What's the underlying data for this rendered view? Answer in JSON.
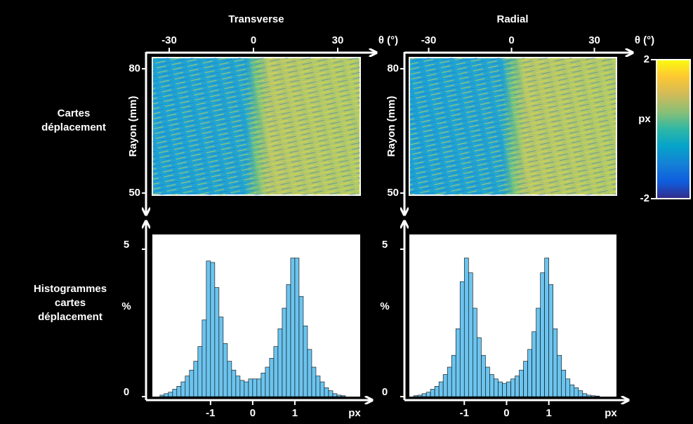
{
  "column_titles": [
    "Transverse",
    "Radial"
  ],
  "row_labels": [
    [
      "Cartes",
      "déplacement"
    ],
    [
      "Histogrammes",
      "cartes",
      "déplacement"
    ]
  ],
  "colorbar": {
    "ylim": [
      -2,
      2
    ],
    "yticks": [
      -2,
      2
    ],
    "label": "px"
  },
  "chart_data": [
    {
      "type": "heatmap",
      "xlabel": "θ (°)",
      "ylabel": "Rayon (mm)",
      "xlim": [
        -36,
        38
      ],
      "xticks": [
        -30,
        0,
        30
      ],
      "ylim": [
        49.5,
        82.7
      ],
      "yticks": [
        50,
        80
      ]
    },
    {
      "type": "heatmap",
      "xlabel": "θ (°)",
      "ylabel": "Rayon (mm)",
      "xlim": [
        -37,
        38
      ],
      "xticks": [
        -30,
        0,
        30
      ],
      "ylim": [
        49.5,
        82.7
      ],
      "yticks": [
        50,
        80
      ]
    },
    {
      "type": "histogram",
      "xlabel": "px",
      "ylabel": "%",
      "xlim": [
        -2.38,
        2.55
      ],
      "xticks": [
        -1,
        0,
        1
      ],
      "ylim": [
        0,
        5.5
      ],
      "yticks": [
        0,
        5
      ],
      "color": "#6cc4ee",
      "bins": [
        -2.2,
        -2.1,
        -2.0,
        -1.9,
        -1.8,
        -1.7,
        -1.6,
        -1.5,
        -1.4,
        -1.3,
        -1.2,
        -1.1,
        -1.0,
        -0.9,
        -0.8,
        -0.7,
        -0.6,
        -0.5,
        -0.4,
        -0.3,
        -0.2,
        -0.1,
        0.0,
        0.1,
        0.2,
        0.3,
        0.4,
        0.5,
        0.6,
        0.7,
        0.8,
        0.9,
        1.0,
        1.1,
        1.2,
        1.3,
        1.4,
        1.5,
        1.6,
        1.7,
        1.8,
        1.9,
        2.0,
        2.1,
        2.2
      ],
      "values": [
        0.05,
        0.1,
        0.15,
        0.25,
        0.35,
        0.5,
        0.7,
        0.9,
        1.2,
        1.7,
        2.6,
        4.6,
        4.55,
        3.7,
        2.7,
        1.8,
        1.2,
        0.9,
        0.7,
        0.55,
        0.5,
        0.6,
        0.6,
        0.6,
        0.8,
        1.0,
        1.3,
        1.7,
        2.3,
        3.0,
        3.8,
        4.7,
        4.7,
        3.4,
        2.4,
        1.6,
        1.0,
        0.7,
        0.5,
        0.3,
        0.2,
        0.1,
        0.05,
        0.03
      ]
    },
    {
      "type": "histogram",
      "xlabel": "px",
      "ylabel": "%",
      "xlim": [
        -2.3,
        2.6
      ],
      "xticks": [
        -1,
        0,
        1
      ],
      "ylim": [
        0,
        5.5
      ],
      "yticks": [
        0,
        5
      ],
      "color": "#6cc4ee",
      "bins": [
        -2.2,
        -2.1,
        -2.0,
        -1.9,
        -1.8,
        -1.7,
        -1.6,
        -1.5,
        -1.4,
        -1.3,
        -1.2,
        -1.1,
        -1.0,
        -0.9,
        -0.8,
        -0.7,
        -0.6,
        -0.5,
        -0.4,
        -0.3,
        -0.2,
        -0.1,
        0.0,
        0.1,
        0.2,
        0.3,
        0.4,
        0.5,
        0.6,
        0.7,
        0.8,
        0.9,
        1.0,
        1.1,
        1.2,
        1.3,
        1.4,
        1.5,
        1.6,
        1.7,
        1.8,
        1.9,
        2.0,
        2.1,
        2.2
      ],
      "values": [
        0.03,
        0.05,
        0.1,
        0.15,
        0.25,
        0.35,
        0.5,
        0.75,
        1.0,
        1.4,
        2.3,
        3.9,
        4.7,
        4.2,
        3.0,
        2.0,
        1.4,
        1.0,
        0.75,
        0.6,
        0.5,
        0.45,
        0.5,
        0.6,
        0.7,
        0.9,
        1.2,
        1.6,
        2.2,
        3.0,
        4.2,
        4.7,
        3.8,
        2.3,
        1.4,
        0.9,
        0.6,
        0.4,
        0.3,
        0.2,
        0.1,
        0.05,
        0.03,
        0.02
      ]
    }
  ]
}
